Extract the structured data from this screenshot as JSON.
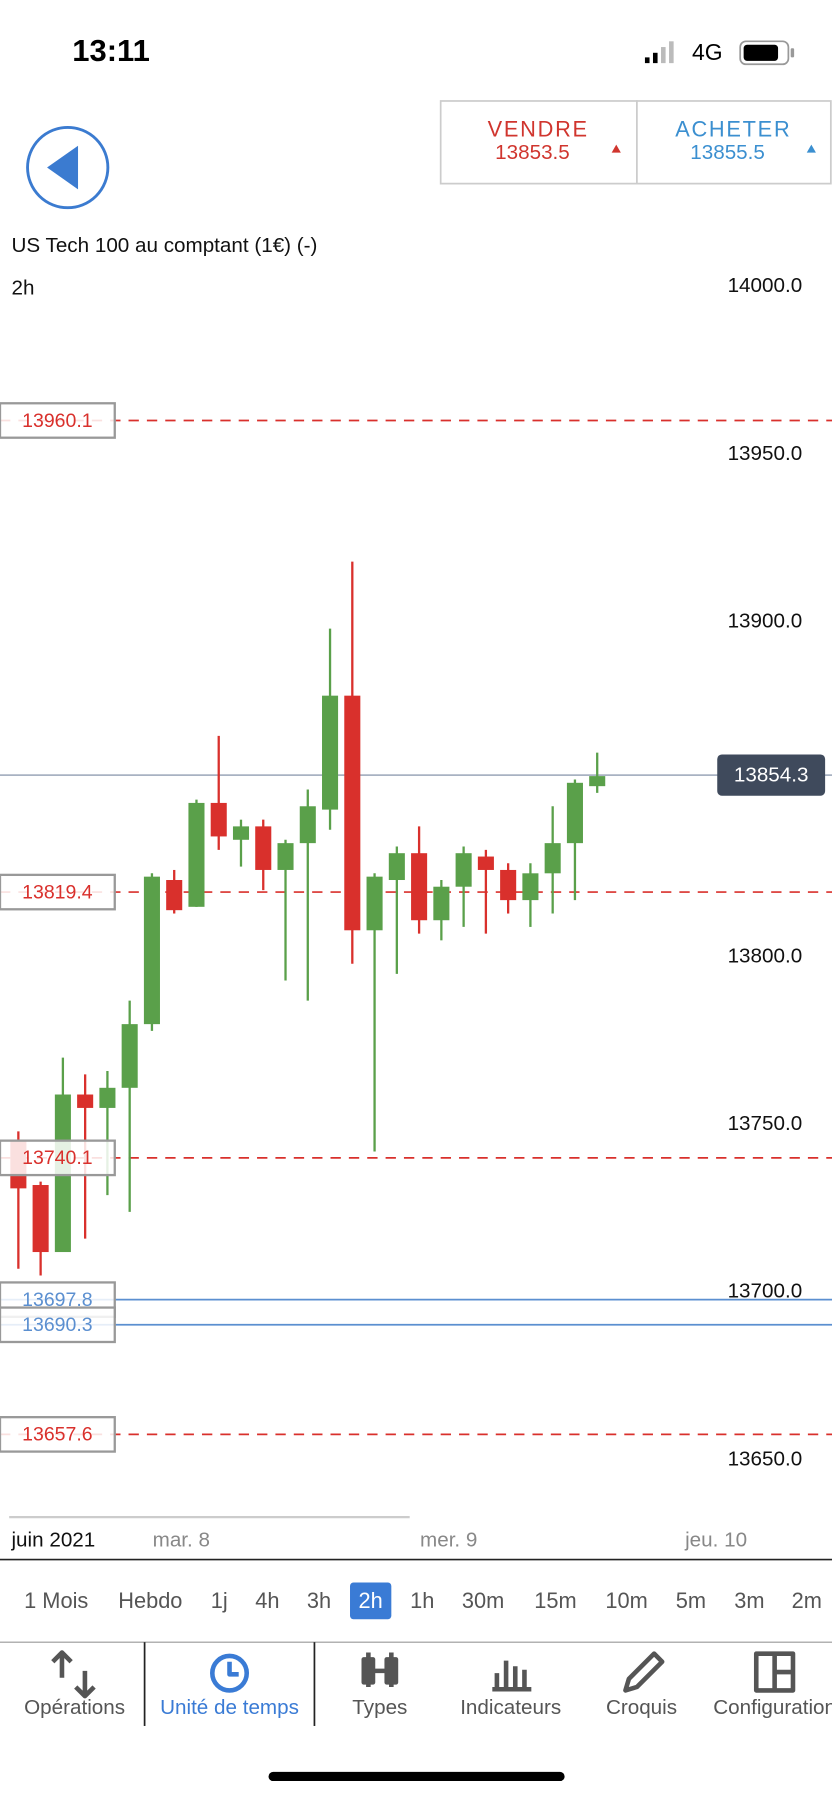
{
  "status_bar": {
    "time": "13:11",
    "network": "4G"
  },
  "quote": {
    "sell_label": "VENDRE",
    "sell_price": 13853.5,
    "buy_label": "ACHETER",
    "buy_price": 13855.5
  },
  "chart_data": {
    "type": "candlestick",
    "title": "US Tech 100 au comptant (1€) (-)",
    "subtitle": "2h",
    "open": [
      13745,
      13732,
      13712,
      13759,
      13755,
      13761,
      13780,
      13823,
      13815,
      13846,
      13835,
      13839,
      13826,
      13834,
      13844,
      13878,
      13808,
      13823,
      13831,
      13811,
      13821,
      13830,
      13826,
      13817,
      13825,
      13834,
      13851
    ],
    "high": [
      13748,
      13733,
      13770,
      13765,
      13766,
      13787,
      13825,
      13826,
      13847,
      13866,
      13841,
      13841,
      13835,
      13850,
      13898,
      13918,
      13825,
      13833,
      13839,
      13823,
      13833,
      13832,
      13828,
      13828,
      13845,
      13853,
      13861
    ],
    "low": [
      13707,
      13705,
      13712,
      13716,
      13729,
      13724,
      13778,
      13813,
      13815,
      13832,
      13827,
      13820,
      13793,
      13787,
      13838,
      13798,
      13742,
      13795,
      13807,
      13805,
      13809,
      13807,
      13813,
      13809,
      13813,
      13817,
      13849
    ],
    "close": [
      13731,
      13712,
      13759,
      13755,
      13761,
      13780,
      13824,
      13814,
      13846,
      13836,
      13839,
      13826,
      13834,
      13845,
      13878,
      13808,
      13824,
      13831,
      13811,
      13821,
      13831,
      13826,
      13817,
      13825,
      13834,
      13852,
      13854
    ],
    "up_color": "#5aa04a",
    "down_color": "#d9302c",
    "ylim": [
      13633.6,
      14020.5
    ],
    "yticks": [
      {
        "value": 14000,
        "label": "14000.0"
      },
      {
        "value": 13950,
        "label": "13950.0"
      },
      {
        "value": 13900,
        "label": "13900.0"
      },
      {
        "value": 13850,
        "label": "13850.0"
      },
      {
        "value": 13800,
        "label": "13800.0"
      },
      {
        "value": 13750,
        "label": "13750.0"
      },
      {
        "value": 13700,
        "label": "13700.0"
      },
      {
        "value": 13650,
        "label": "13650.0"
      }
    ],
    "x_labels": [
      "juin 2021",
      "mar. 8",
      "mer. 9",
      "jeu. 10"
    ],
    "price_lines": [
      {
        "value": 13960.1,
        "color": "#d9302c",
        "style": "dashed"
      },
      {
        "value": 13819.4,
        "color": "#d9302c",
        "style": "dashed"
      },
      {
        "value": 13740.1,
        "color": "#d9302c",
        "style": "dashed"
      },
      {
        "value": 13697.8,
        "color": "#5b8fd0",
        "style": "solid"
      },
      {
        "value": 13690.3,
        "color": "#5b8fd0",
        "style": "solid"
      },
      {
        "value": 13657.6,
        "color": "#d9302c",
        "style": "dashed"
      }
    ],
    "current_price": {
      "value": 13854.3,
      "color": "#a8b2c2"
    }
  },
  "timeframes": {
    "items": [
      "1 Mois",
      "Hebdo",
      "1j",
      "4h",
      "3h",
      "2h",
      "1h",
      "30m",
      "15m",
      "10m",
      "5m",
      "3m",
      "2m"
    ],
    "selected": 5
  },
  "tabs": {
    "items": [
      "Opérations",
      "Unité de temps",
      "Types",
      "Indicateurs",
      "Croquis",
      "Configuration"
    ],
    "selected": 1
  }
}
